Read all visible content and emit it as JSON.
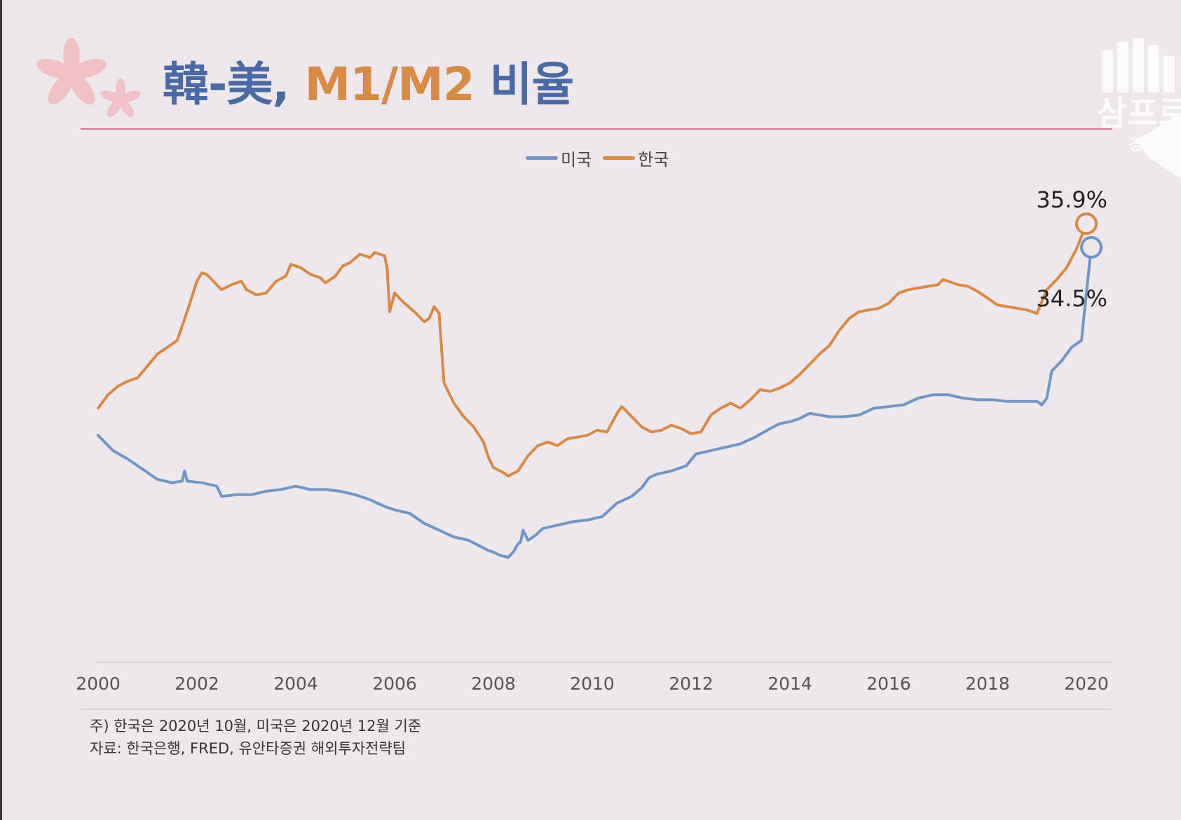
{
  "title": {
    "part1": "韓-美, ",
    "part2": "M1/M2",
    "part3": " 비율"
  },
  "legend": [
    {
      "name": "미국",
      "color": "#6f96c6"
    },
    {
      "name": "한국",
      "color": "#d98a45"
    }
  ],
  "annotations": {
    "korea_end": "35.9%",
    "us_end": "34.5%"
  },
  "notes": {
    "line1": "주) 한국은 2020년 10월, 미국은 2020년 12월 기준",
    "line2": "자료: 한국은행, FRED, 유안타증권 해외투자전략팀"
  },
  "watermark": {
    "logo_text": "삼프로",
    "sub_text": "경제의 신"
  },
  "chart_data": {
    "type": "line",
    "title": "韓-美, M1/M2 비율",
    "xlabel": "",
    "ylabel": "",
    "xlim": [
      2000,
      2021
    ],
    "ylim": [
      10,
      40
    ],
    "x_ticks": [
      "2000",
      "2002",
      "2004",
      "2006",
      "2008",
      "2010",
      "2012",
      "2014",
      "2016",
      "2018",
      "2020"
    ],
    "grid": false,
    "legend_position": "top",
    "series": [
      {
        "name": "미국",
        "color": "#6f96c6",
        "points": [
          [
            2000.0,
            23.4
          ],
          [
            2000.3,
            22.5
          ],
          [
            2000.6,
            22.0
          ],
          [
            2000.9,
            21.4
          ],
          [
            2001.2,
            20.8
          ],
          [
            2001.5,
            20.6
          ],
          [
            2001.7,
            20.7
          ],
          [
            2001.75,
            21.3
          ],
          [
            2001.8,
            20.7
          ],
          [
            2002.1,
            20.6
          ],
          [
            2002.4,
            20.4
          ],
          [
            2002.5,
            19.8
          ],
          [
            2002.8,
            19.9
          ],
          [
            2003.1,
            19.9
          ],
          [
            2003.4,
            20.1
          ],
          [
            2003.7,
            20.2
          ],
          [
            2004.0,
            20.4
          ],
          [
            2004.3,
            20.2
          ],
          [
            2004.6,
            20.2
          ],
          [
            2004.9,
            20.1
          ],
          [
            2005.2,
            19.9
          ],
          [
            2005.5,
            19.6
          ],
          [
            2005.8,
            19.2
          ],
          [
            2006.0,
            19.0
          ],
          [
            2006.3,
            18.8
          ],
          [
            2006.6,
            18.2
          ],
          [
            2006.9,
            17.8
          ],
          [
            2007.2,
            17.4
          ],
          [
            2007.5,
            17.2
          ],
          [
            2007.7,
            16.9
          ],
          [
            2007.9,
            16.6
          ],
          [
            2008.0,
            16.5
          ],
          [
            2008.15,
            16.3
          ],
          [
            2008.3,
            16.2
          ],
          [
            2008.4,
            16.5
          ],
          [
            2008.5,
            17.0
          ],
          [
            2008.55,
            17.1
          ],
          [
            2008.6,
            17.8
          ],
          [
            2008.7,
            17.2
          ],
          [
            2008.85,
            17.5
          ],
          [
            2009.0,
            17.9
          ],
          [
            2009.3,
            18.1
          ],
          [
            2009.6,
            18.3
          ],
          [
            2009.9,
            18.4
          ],
          [
            2010.2,
            18.6
          ],
          [
            2010.5,
            19.4
          ],
          [
            2010.8,
            19.8
          ],
          [
            2011.0,
            20.3
          ],
          [
            2011.15,
            20.9
          ],
          [
            2011.3,
            21.1
          ],
          [
            2011.6,
            21.3
          ],
          [
            2011.9,
            21.6
          ],
          [
            2012.1,
            22.3
          ],
          [
            2012.4,
            22.5
          ],
          [
            2012.7,
            22.7
          ],
          [
            2013.0,
            22.9
          ],
          [
            2013.3,
            23.3
          ],
          [
            2013.6,
            23.8
          ],
          [
            2013.8,
            24.1
          ],
          [
            2014.0,
            24.2
          ],
          [
            2014.2,
            24.4
          ],
          [
            2014.4,
            24.7
          ],
          [
            2014.6,
            24.6
          ],
          [
            2014.8,
            24.5
          ],
          [
            2015.1,
            24.5
          ],
          [
            2015.4,
            24.6
          ],
          [
            2015.7,
            25.0
          ],
          [
            2016.0,
            25.1
          ],
          [
            2016.3,
            25.2
          ],
          [
            2016.6,
            25.6
          ],
          [
            2016.9,
            25.8
          ],
          [
            2017.2,
            25.8
          ],
          [
            2017.5,
            25.6
          ],
          [
            2017.8,
            25.5
          ],
          [
            2018.1,
            25.5
          ],
          [
            2018.4,
            25.4
          ],
          [
            2018.7,
            25.4
          ],
          [
            2019.0,
            25.4
          ],
          [
            2019.1,
            25.2
          ],
          [
            2019.2,
            25.6
          ],
          [
            2019.3,
            27.2
          ],
          [
            2019.5,
            27.8
          ],
          [
            2019.7,
            28.6
          ],
          [
            2019.9,
            29.0
          ],
          [
            2020.0,
            31.8
          ],
          [
            2020.1,
            34.5
          ]
        ]
      },
      {
        "name": "한국",
        "color": "#d98a45",
        "points": [
          [
            2000.0,
            25.0
          ],
          [
            2000.2,
            25.8
          ],
          [
            2000.4,
            26.3
          ],
          [
            2000.6,
            26.6
          ],
          [
            2000.8,
            26.8
          ],
          [
            2001.0,
            27.5
          ],
          [
            2001.2,
            28.2
          ],
          [
            2001.4,
            28.6
          ],
          [
            2001.6,
            29.0
          ],
          [
            2001.8,
            30.7
          ],
          [
            2002.0,
            32.5
          ],
          [
            2002.1,
            33.0
          ],
          [
            2002.2,
            32.9
          ],
          [
            2002.4,
            32.3
          ],
          [
            2002.5,
            32.0
          ],
          [
            2002.7,
            32.3
          ],
          [
            2002.9,
            32.5
          ],
          [
            2003.0,
            32.0
          ],
          [
            2003.2,
            31.7
          ],
          [
            2003.4,
            31.8
          ],
          [
            2003.6,
            32.5
          ],
          [
            2003.8,
            32.8
          ],
          [
            2003.9,
            33.5
          ],
          [
            2004.1,
            33.3
          ],
          [
            2004.3,
            32.9
          ],
          [
            2004.5,
            32.7
          ],
          [
            2004.6,
            32.4
          ],
          [
            2004.8,
            32.8
          ],
          [
            2004.95,
            33.4
          ],
          [
            2005.1,
            33.6
          ],
          [
            2005.3,
            34.1
          ],
          [
            2005.5,
            33.9
          ],
          [
            2005.6,
            34.2
          ],
          [
            2005.8,
            34.0
          ],
          [
            2005.85,
            33.2
          ],
          [
            2005.9,
            30.7
          ],
          [
            2006.0,
            31.8
          ],
          [
            2006.2,
            31.2
          ],
          [
            2006.4,
            30.7
          ],
          [
            2006.5,
            30.4
          ],
          [
            2006.6,
            30.1
          ],
          [
            2006.7,
            30.3
          ],
          [
            2006.8,
            31.0
          ],
          [
            2006.9,
            30.6
          ],
          [
            2007.0,
            26.5
          ],
          [
            2007.2,
            25.3
          ],
          [
            2007.4,
            24.5
          ],
          [
            2007.6,
            23.9
          ],
          [
            2007.8,
            23.0
          ],
          [
            2007.9,
            22.1
          ],
          [
            2008.0,
            21.5
          ],
          [
            2008.2,
            21.2
          ],
          [
            2008.3,
            21.0
          ],
          [
            2008.5,
            21.3
          ],
          [
            2008.7,
            22.2
          ],
          [
            2008.9,
            22.8
          ],
          [
            2009.1,
            23.0
          ],
          [
            2009.3,
            22.8
          ],
          [
            2009.5,
            23.2
          ],
          [
            2009.7,
            23.3
          ],
          [
            2009.9,
            23.4
          ],
          [
            2010.1,
            23.7
          ],
          [
            2010.3,
            23.6
          ],
          [
            2010.5,
            24.7
          ],
          [
            2010.6,
            25.1
          ],
          [
            2010.8,
            24.5
          ],
          [
            2011.0,
            23.9
          ],
          [
            2011.2,
            23.6
          ],
          [
            2011.4,
            23.7
          ],
          [
            2011.6,
            24.0
          ],
          [
            2011.8,
            23.8
          ],
          [
            2012.0,
            23.5
          ],
          [
            2012.2,
            23.6
          ],
          [
            2012.4,
            24.6
          ],
          [
            2012.6,
            25.0
          ],
          [
            2012.8,
            25.3
          ],
          [
            2013.0,
            25.0
          ],
          [
            2013.2,
            25.5
          ],
          [
            2013.4,
            26.1
          ],
          [
            2013.6,
            26.0
          ],
          [
            2013.8,
            26.2
          ],
          [
            2014.0,
            26.5
          ],
          [
            2014.2,
            27.0
          ],
          [
            2014.4,
            27.6
          ],
          [
            2014.6,
            28.2
          ],
          [
            2014.8,
            28.7
          ],
          [
            2015.0,
            29.6
          ],
          [
            2015.2,
            30.3
          ],
          [
            2015.4,
            30.7
          ],
          [
            2015.6,
            30.8
          ],
          [
            2015.8,
            30.9
          ],
          [
            2016.0,
            31.2
          ],
          [
            2016.2,
            31.8
          ],
          [
            2016.4,
            32.0
          ],
          [
            2016.6,
            32.1
          ],
          [
            2016.8,
            32.2
          ],
          [
            2017.0,
            32.3
          ],
          [
            2017.1,
            32.6
          ],
          [
            2017.2,
            32.5
          ],
          [
            2017.4,
            32.3
          ],
          [
            2017.6,
            32.2
          ],
          [
            2017.8,
            31.9
          ],
          [
            2018.0,
            31.5
          ],
          [
            2018.2,
            31.1
          ],
          [
            2018.4,
            31.0
          ],
          [
            2018.6,
            30.9
          ],
          [
            2018.8,
            30.8
          ],
          [
            2019.0,
            30.6
          ],
          [
            2019.1,
            31.3
          ],
          [
            2019.2,
            32.0
          ],
          [
            2019.4,
            32.6
          ],
          [
            2019.6,
            33.3
          ],
          [
            2019.8,
            34.4
          ],
          [
            2019.95,
            35.5
          ],
          [
            2020.0,
            35.9
          ]
        ]
      }
    ]
  }
}
